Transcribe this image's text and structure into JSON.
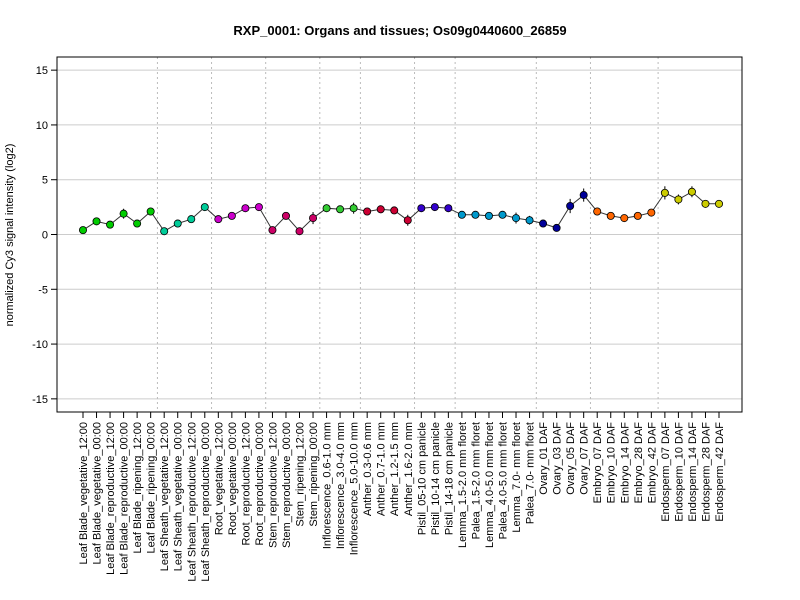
{
  "chart_data": {
    "type": "line",
    "title": "RXP_0001: Organs and tissues; Os09g0440600_26859",
    "xlabel": "",
    "ylabel": "normalized Cy3 signal intensity (log2)",
    "ylim": [
      -16.2,
      16.2
    ],
    "yticks": [
      -15,
      -10,
      -5,
      0,
      5,
      10,
      15
    ],
    "grid": "horizontal at y ticks; dotted vertical separators between sample groups",
    "categories": [
      "Leaf Blade_vegetative_12:00",
      "Leaf Blade_vegetative_00:00",
      "Leaf Blade_reproductive_12:00",
      "Leaf Blade_reproductive_00:00",
      "Leaf Blade_ripening_12:00",
      "Leaf Blade_ripening_00:00",
      "Leaf Sheath_vegetative_12:00",
      "Leaf Sheath_vegetative_00:00",
      "Leaf Sheath_reproductive_12:00",
      "Leaf Sheath_reproductive_00:00",
      "Root_vegetative_12:00",
      "Root_vegetative_00:00",
      "Root_reproductive_12:00",
      "Root_reproductive_00:00",
      "Stem_reproductive_12:00",
      "Stem_reproductive_00:00",
      "Stem_ripening_12:00",
      "Stem_ripening_00:00",
      "Inflorescence_0.6-1.0 mm",
      "Inflorescence_3.0-4.0 mm",
      "Inflorescence_5.0-10.0 mm",
      "Anther_0.3-0.6 mm",
      "Anther_0.7-1.0 mm",
      "Anther_1.2-1.5 mm",
      "Anther_1.6-2.0 mm",
      "Pistil_05-10 cm panicle",
      "Pistil_10-14 cm panicle",
      "Pistil_14-18 cm panicle",
      "Lemma_1.5-2.0 mm floret",
      "Palea_1.5-2.0 mm floret",
      "Lemma_4.0-5.0 mm floret",
      "Palea_4.0-5.0 mm floret",
      "Lemma_7.0- mm floret",
      "Palea_7.0- mm floret",
      "Ovary_01 DAF",
      "Ovary_03 DAF",
      "Ovary_05 DAF",
      "Ovary_07 DAF",
      "Embryo_07 DAF",
      "Embryo_10 DAF",
      "Embryo_14 DAF",
      "Embryo_28 DAF",
      "Embryo_42 DAF",
      "Endosperm_07 DAF",
      "Endosperm_10 DAF",
      "Endosperm_14 DAF",
      "Endosperm_28 DAF",
      "Endosperm_42 DAF"
    ],
    "values": [
      0.4,
      1.2,
      0.9,
      1.9,
      1.0,
      2.1,
      0.3,
      1.0,
      1.4,
      2.5,
      1.4,
      1.7,
      2.4,
      2.5,
      0.4,
      1.7,
      0.3,
      1.5,
      2.4,
      2.3,
      2.4,
      2.1,
      2.3,
      2.2,
      1.3,
      2.4,
      2.5,
      2.4,
      1.8,
      1.8,
      1.7,
      1.8,
      1.5,
      1.3,
      1.0,
      0.6,
      2.6,
      3.6,
      2.1,
      1.7,
      1.5,
      1.7,
      2.0,
      3.8,
      3.2,
      3.9,
      2.8,
      2.8
    ],
    "errors": [
      0.3,
      0.15,
      0.15,
      0.45,
      0.15,
      0.3,
      0.1,
      0.15,
      0.15,
      0.25,
      0.15,
      0.15,
      0.2,
      0.2,
      0.15,
      0.3,
      0.15,
      0.55,
      0.35,
      0.3,
      0.5,
      0.15,
      0.35,
      0.3,
      0.5,
      0.2,
      0.2,
      0.2,
      0.2,
      0.2,
      0.3,
      0.2,
      0.5,
      0.4,
      0.2,
      0.15,
      0.65,
      0.6,
      0.35,
      0.2,
      0.15,
      0.2,
      0.25,
      0.6,
      0.45,
      0.5,
      0.25,
      0.15
    ],
    "colors": [
      "#00cc00",
      "#00cc00",
      "#00cc00",
      "#00cc00",
      "#00cc00",
      "#00cc00",
      "#00cc99",
      "#00cc99",
      "#00cc99",
      "#00cc99",
      "#cc00cc",
      "#cc00cc",
      "#cc00cc",
      "#cc00cc",
      "#cc0066",
      "#cc0066",
      "#cc0066",
      "#cc0066",
      "#33cc33",
      "#33cc33",
      "#33cc33",
      "#cc0033",
      "#cc0033",
      "#cc0033",
      "#cc0033",
      "#3300cc",
      "#3300cc",
      "#3300cc",
      "#0099cc",
      "#0099cc",
      "#0099cc",
      "#0099cc",
      "#0099cc",
      "#0099cc",
      "#000099",
      "#000099",
      "#000099",
      "#000099",
      "#ff6600",
      "#ff6600",
      "#ff6600",
      "#ff6600",
      "#ff6600",
      "#cccc00",
      "#cccc00",
      "#cccc00",
      "#cccc00",
      "#cccc00"
    ],
    "group_separators_after": [
      5,
      9,
      13,
      17,
      20,
      24,
      27,
      33,
      37,
      42
    ]
  }
}
